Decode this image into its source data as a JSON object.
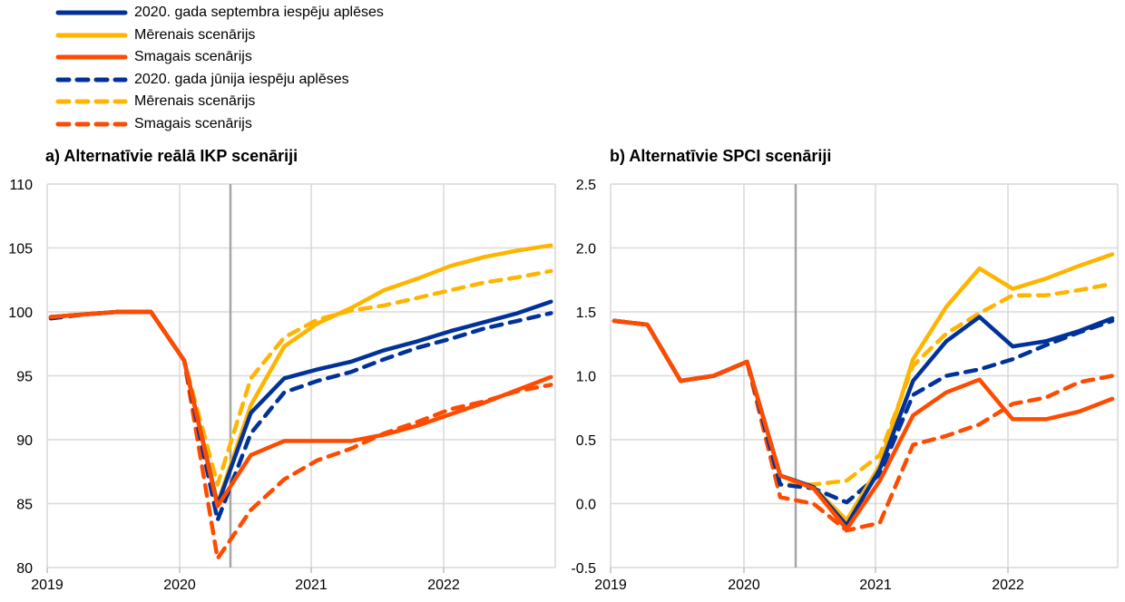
{
  "legend": [
    {
      "label": "2020. gada septembra iespēju aplēses",
      "color": "#003299",
      "dashed": false
    },
    {
      "label": "Mērenais scenārijs",
      "color": "#FFB400",
      "dashed": false
    },
    {
      "label": "Smagais scenārijs",
      "color": "#FF4B00",
      "dashed": false
    },
    {
      "label": "2020. gada jūnija iespēju aplēses",
      "color": "#003299",
      "dashed": true
    },
    {
      "label": "Mērenais scenārijs",
      "color": "#FFB400",
      "dashed": true
    },
    {
      "label": "Smagais scenārijs",
      "color": "#FF4B00",
      "dashed": true
    }
  ],
  "chart_data": [
    {
      "type": "line",
      "title": "a) Alternatīvie reālā IKP scenāriji",
      "xlabel": "",
      "ylabel": "",
      "x": [
        "2019Q1",
        "2019Q2",
        "2019Q3",
        "2019Q4",
        "2020Q1",
        "2020Q2",
        "2020Q3",
        "2020Q4",
        "2021Q1",
        "2021Q2",
        "2021Q3",
        "2021Q4",
        "2022Q1",
        "2022Q2",
        "2022Q3",
        "2022Q4"
      ],
      "x_tick_labels": [
        "2019",
        "2020",
        "2021",
        "2022"
      ],
      "ylim": [
        80,
        110
      ],
      "y_ticks": [
        80,
        85,
        90,
        95,
        100,
        105,
        110
      ],
      "y_tick_labels": [
        "80",
        "85",
        "90",
        "95",
        "100",
        "105",
        "110"
      ],
      "grid": true,
      "vertical_marker": "2020Q2-Q3",
      "series": [
        {
          "name": "2020. gada jūnija iespēju aplēses - Smagais scenārijs",
          "color": "#FF4B00",
          "dashed": true,
          "values": [
            99.5,
            99.8,
            100.0,
            100.0,
            96.2,
            80.7,
            84.5,
            86.9,
            88.4,
            89.3,
            90.5,
            91.4,
            92.4,
            93.0,
            93.8,
            94.3
          ]
        },
        {
          "name": "2020. gada jūnija iespēju aplēses - Mērenais scenārijs",
          "color": "#FFB400",
          "dashed": true,
          "values": [
            99.5,
            99.8,
            100.0,
            100.0,
            96.2,
            86.5,
            94.8,
            98.0,
            99.4,
            100.1,
            100.5,
            101.1,
            101.7,
            102.3,
            102.7,
            103.2
          ]
        },
        {
          "name": "2020. gada jūnija iespēju aplēses",
          "color": "#003299",
          "dashed": true,
          "values": [
            99.5,
            99.8,
            100.0,
            100.0,
            96.2,
            83.7,
            90.5,
            93.7,
            94.6,
            95.3,
            96.3,
            97.2,
            97.9,
            98.7,
            99.3,
            99.9
          ]
        },
        {
          "name": "2020. gada septembra iespēju aplēses - Mērenais scenārijs",
          "color": "#FFB400",
          "dashed": false,
          "values": [
            99.6,
            99.8,
            100.0,
            100.0,
            96.2,
            85.0,
            92.7,
            97.3,
            99.1,
            100.3,
            101.7,
            102.6,
            103.6,
            104.3,
            104.8,
            105.2
          ]
        },
        {
          "name": "2020. gada septembra iespēju aplēses",
          "color": "#003299",
          "dashed": false,
          "values": [
            99.6,
            99.8,
            100.0,
            100.0,
            96.2,
            84.9,
            92.1,
            94.8,
            95.5,
            96.1,
            97.0,
            97.7,
            98.5,
            99.2,
            99.9,
            100.8
          ]
        },
        {
          "name": "2020. gada septembra iespēju aplēses - Smagais scenārijs",
          "color": "#FF4B00",
          "dashed": false,
          "values": [
            99.6,
            99.8,
            100.0,
            100.0,
            96.2,
            84.8,
            88.8,
            89.9,
            89.9,
            89.9,
            90.4,
            91.1,
            92.0,
            92.9,
            93.9,
            94.9
          ]
        }
      ]
    },
    {
      "type": "line",
      "title": "b) Alternatīvie SPCI scenāriji",
      "xlabel": "",
      "ylabel": "",
      "x": [
        "2019Q1",
        "2019Q2",
        "2019Q3",
        "2019Q4",
        "2020Q1",
        "2020Q2",
        "2020Q3",
        "2020Q4",
        "2021Q1",
        "2021Q2",
        "2021Q3",
        "2021Q4",
        "2022Q1",
        "2022Q2",
        "2022Q3",
        "2022Q4"
      ],
      "x_tick_labels": [
        "2019",
        "2020",
        "2021",
        "2022"
      ],
      "ylim": [
        -0.5,
        2.5
      ],
      "y_ticks": [
        -0.5,
        0.0,
        0.5,
        1.0,
        1.5,
        2.0,
        2.5
      ],
      "y_tick_labels": [
        "-0.5",
        "0.0",
        "0.5",
        "1.0",
        "1.5",
        "2.0",
        "2.5"
      ],
      "grid": true,
      "vertical_marker": "2020Q2-Q3",
      "series": [
        {
          "name": "2020. gada jūnija iespēju aplēses - Smagais scenārijs",
          "color": "#FF4B00",
          "dashed": true,
          "values": [
            1.43,
            1.4,
            0.96,
            1.0,
            1.11,
            0.05,
            0.0,
            -0.21,
            -0.15,
            0.46,
            0.53,
            0.62,
            0.78,
            0.83,
            0.95,
            1.0
          ]
        },
        {
          "name": "2020. gada jūnija iespēju aplēses - Mērenais scenārijs",
          "color": "#FFB400",
          "dashed": true,
          "values": [
            1.43,
            1.4,
            0.96,
            1.0,
            1.11,
            0.15,
            0.15,
            0.18,
            0.38,
            1.08,
            1.33,
            1.49,
            1.63,
            1.63,
            1.67,
            1.72
          ]
        },
        {
          "name": "2020. gada jūnija iespēju aplēses",
          "color": "#003299",
          "dashed": true,
          "values": [
            1.43,
            1.4,
            0.96,
            1.0,
            1.11,
            0.15,
            0.12,
            0.01,
            0.23,
            0.85,
            1.0,
            1.05,
            1.13,
            1.24,
            1.34,
            1.43
          ]
        },
        {
          "name": "2020. gada septembra iespēju aplēses - Mērenais scenārijs",
          "color": "#FFB400",
          "dashed": false,
          "values": [
            1.43,
            1.4,
            0.96,
            1.0,
            1.11,
            0.22,
            0.13,
            -0.13,
            0.3,
            1.13,
            1.54,
            1.84,
            1.68,
            1.76,
            1.86,
            1.95
          ]
        },
        {
          "name": "2020. gada septembra iespēju aplēses",
          "color": "#003299",
          "dashed": false,
          "values": [
            1.43,
            1.4,
            0.96,
            1.0,
            1.11,
            0.22,
            0.13,
            -0.17,
            0.27,
            0.96,
            1.27,
            1.46,
            1.23,
            1.27,
            1.35,
            1.45
          ]
        },
        {
          "name": "2020. gada septembra iespēju aplēses - Smagais scenārijs",
          "color": "#FF4B00",
          "dashed": false,
          "values": [
            1.43,
            1.4,
            0.96,
            1.0,
            1.11,
            0.22,
            0.12,
            -0.2,
            0.18,
            0.69,
            0.87,
            0.97,
            0.66,
            0.66,
            0.72,
            0.82
          ]
        }
      ]
    }
  ]
}
